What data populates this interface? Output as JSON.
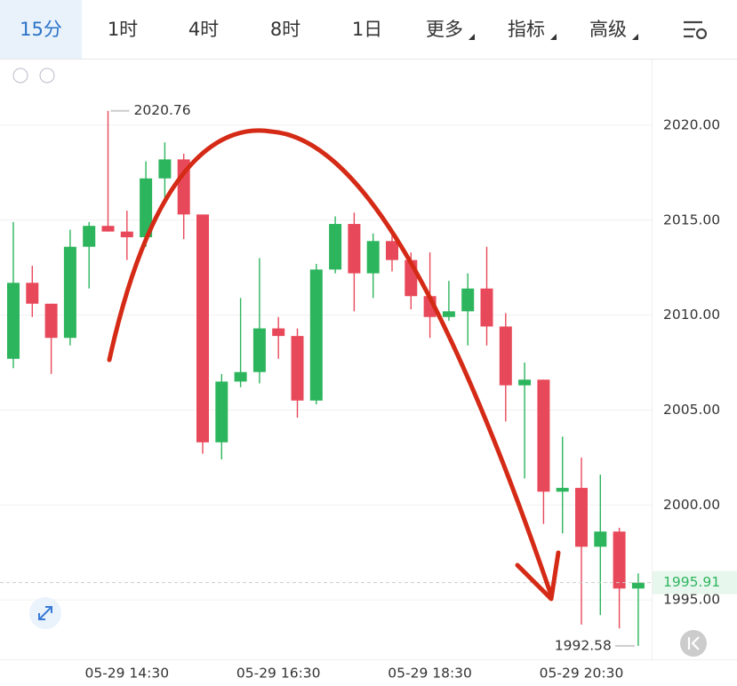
{
  "tabs": [
    "15分",
    "1时",
    "4时",
    "8时",
    "1日",
    "更多",
    "指标",
    "高级"
  ],
  "chart_data": {
    "type": "candlestick",
    "categories": [
      null,
      null,
      null,
      null,
      null,
      null,
      "05-29 14:30",
      null,
      null,
      null,
      null,
      null,
      null,
      null,
      "05-29 16:30",
      null,
      null,
      null,
      null,
      null,
      null,
      null,
      "05-29 18:30",
      null,
      null,
      null,
      null,
      null,
      null,
      null,
      "05-29 20:30",
      null,
      null,
      null
    ],
    "open": [
      2007.7,
      2011.7,
      2010.6,
      2008.8,
      2013.6,
      2014.7,
      2014.4,
      2014.1,
      2017.2,
      2018.2,
      2015.3,
      2003.3,
      2006.5,
      2007.0,
      2009.3,
      2008.9,
      2005.5,
      2012.4,
      2014.8,
      2012.2,
      2013.9,
      2012.9,
      2011.0,
      2009.9,
      2010.2,
      2011.4,
      2009.4,
      2006.3,
      2006.6,
      2000.7,
      2000.9,
      1997.8,
      1998.6,
      1995.6
    ],
    "high": [
      2014.9,
      2012.6,
      2010.6,
      2014.5,
      2014.9,
      2020.76,
      2015.5,
      2018.1,
      2019.1,
      2018.5,
      2015.3,
      2006.9,
      2010.9,
      2013.0,
      2009.9,
      2009.3,
      2012.7,
      2015.2,
      2015.4,
      2014.3,
      2014.3,
      2013.3,
      2013.3,
      2011.8,
      2012.2,
      2013.6,
      2010.1,
      2007.5,
      2006.6,
      2003.6,
      2002.5,
      2001.6,
      1998.8,
      1996.4
    ],
    "low": [
      2007.2,
      2009.9,
      2006.9,
      2008.4,
      2011.4,
      2014.4,
      2012.9,
      2013.6,
      2016.0,
      2014.0,
      2002.7,
      2002.4,
      2006.2,
      2006.4,
      2007.7,
      2004.6,
      2005.3,
      2012.2,
      2010.2,
      2010.9,
      2012.3,
      2010.3,
      2008.8,
      2009.7,
      2008.4,
      2008.4,
      2004.4,
      2001.4,
      1999.0,
      1998.5,
      1993.7,
      1994.2,
      1993.5,
      1992.58
    ],
    "close": [
      2011.7,
      2010.6,
      2008.8,
      2013.6,
      2014.7,
      2014.4,
      2014.1,
      2017.2,
      2018.2,
      2015.3,
      2003.3,
      2006.5,
      2007.0,
      2009.3,
      2008.9,
      2005.5,
      2012.4,
      2014.8,
      2012.2,
      2013.9,
      2012.9,
      2011.0,
      2009.9,
      2010.2,
      2011.4,
      2009.4,
      2006.3,
      2006.6,
      2000.7,
      2000.9,
      1997.8,
      1998.6,
      1995.6,
      1995.91
    ],
    "up_color": "#2db55d",
    "down_color": "#e8495a",
    "ylim": [
      1991.87,
      2023.46
    ],
    "yticks": [
      {
        "value": 1995,
        "label": "1995.00"
      },
      {
        "value": 2000,
        "label": "2000.00"
      },
      {
        "value": 2005,
        "label": "2005.00"
      },
      {
        "value": 2010,
        "label": "2010.00"
      },
      {
        "value": 2015,
        "label": "2015.00"
      },
      {
        "value": 2020,
        "label": "2020.00"
      }
    ],
    "grid": true,
    "last_price": 1995.91,
    "high_marker": 2020.76,
    "low_marker": 1992.58
  }
}
